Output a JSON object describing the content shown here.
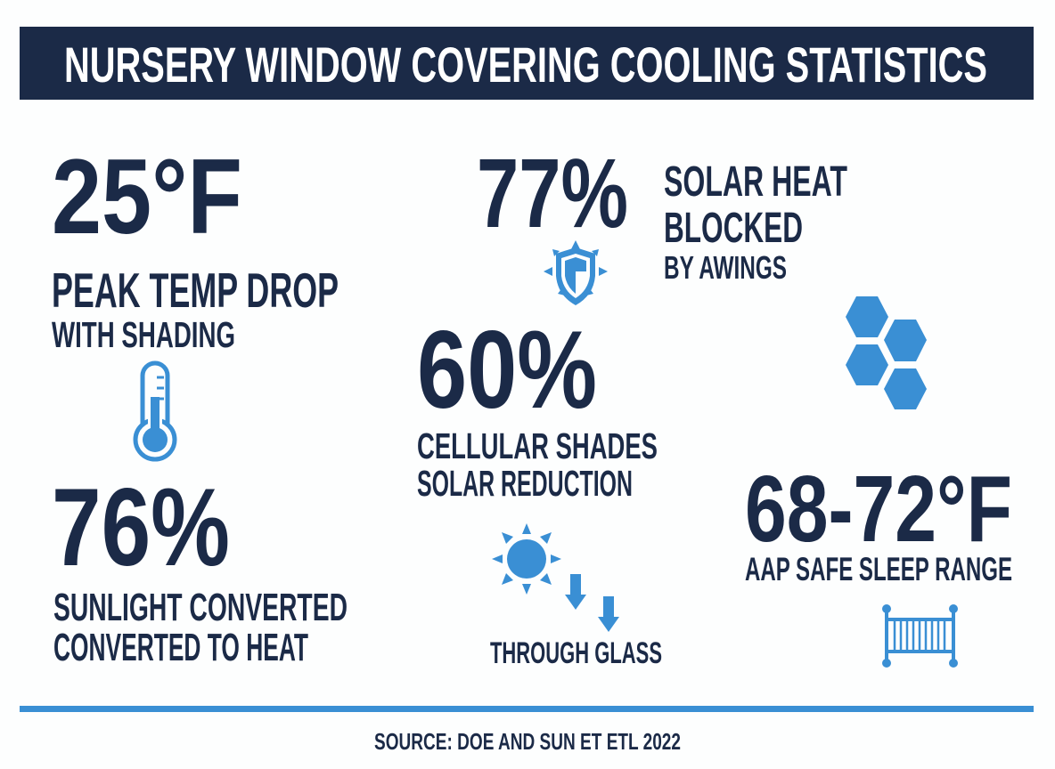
{
  "title": "NURSERY WINDOW COVERING COOLING STATISTICS",
  "colors": {
    "navy": "#1b2a47",
    "accent_blue": "#3a8fd4",
    "background": "#fdfefe"
  },
  "stats": [
    {
      "value": "25°F",
      "label_line1": "PEAK TEMP DROP",
      "label_line2": "WITH SHADING",
      "icon": "thermometer-icon"
    },
    {
      "value": "76%",
      "label_line1": "SUNLIGHT CONVERTED",
      "label_line2": "CONVERTED TO HEAT"
    },
    {
      "value": "77%",
      "label_line1": "SOLAR HEAT",
      "label_line2": "BLOCKED",
      "label_line3": "BY AWINGS",
      "icon": "shield-icon"
    },
    {
      "value": "60%",
      "label_line1": "CELLULAR SHADES",
      "label_line2": "SOLAR REDUCTION",
      "icon": "honeycomb-icon"
    },
    {
      "label": "THROUGH GLASS",
      "icon": "sun-arrows-icon"
    },
    {
      "value": "68-72°F",
      "label_line1": "AAP SAFE SLEEP RANGE",
      "icon": "crib-icon"
    }
  ],
  "source": "SOURCE: DOE AND SUN ET ETL 2022"
}
